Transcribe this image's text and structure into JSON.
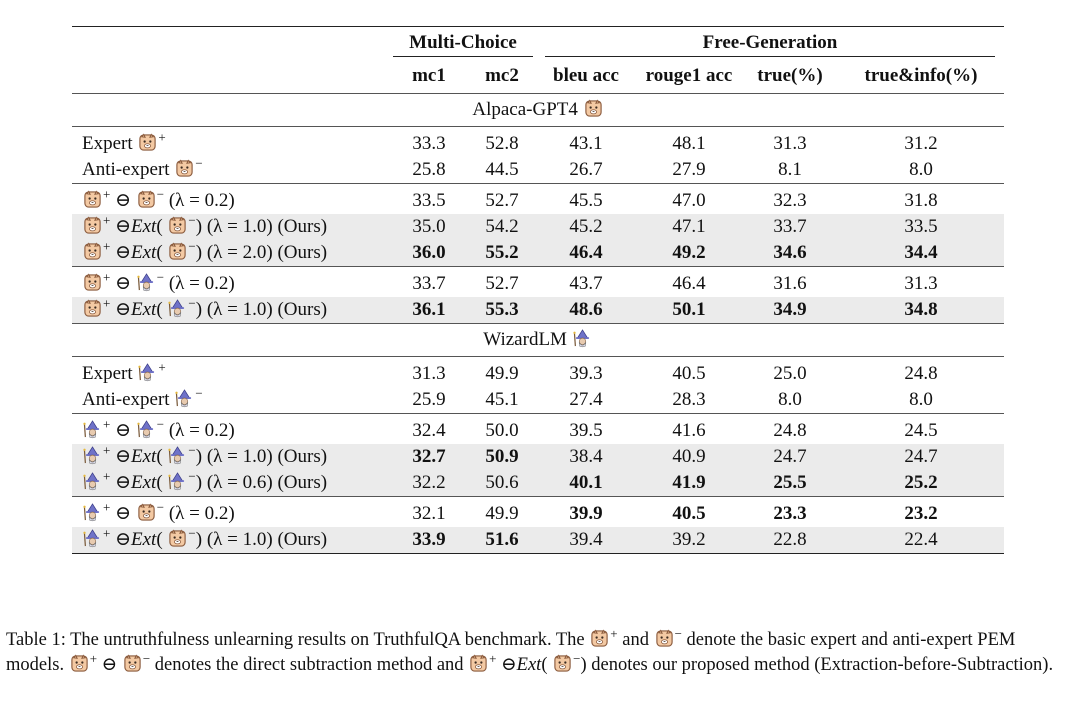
{
  "table": {
    "group_headers": [
      "Multi-Choice",
      "Free-Generation"
    ],
    "columns": [
      "mc1",
      "mc2",
      "bleu acc",
      "rouge1 acc",
      "true(%)",
      "true&info(%)"
    ],
    "sections": [
      {
        "title": "Alpaca-GPT4",
        "title_icon": "alpaca-icon",
        "groups": [
          {
            "rows": [
              {
                "label": "Expert",
                "icon": "alpaca-icon",
                "sign": "+",
                "kind": "single",
                "values": [
                  "33.3",
                  "52.8",
                  "43.1",
                  "48.1",
                  "31.3",
                  "31.2"
                ],
                "bold": [],
                "shaded": false
              },
              {
                "label": "Anti-expert",
                "icon": "alpaca-icon",
                "sign": "−",
                "kind": "single",
                "values": [
                  "25.8",
                  "44.5",
                  "26.7",
                  "27.9",
                  "8.1",
                  "8.0"
                ],
                "bold": [],
                "shaded": false
              }
            ]
          },
          {
            "rows": [
              {
                "left_icon": "alpaca-icon",
                "right_icon": "alpaca-icon",
                "kind": "sub",
                "lambda": "(λ = 0.2)",
                "values": [
                  "33.5",
                  "52.7",
                  "45.5",
                  "47.0",
                  "32.3",
                  "31.8"
                ],
                "bold": [],
                "shaded": false
              },
              {
                "left_icon": "alpaca-icon",
                "right_icon": "alpaca-icon",
                "kind": "ext",
                "lambda": "(λ = 1.0)",
                "ours": "(Ours)",
                "values": [
                  "35.0",
                  "54.2",
                  "45.2",
                  "47.1",
                  "33.7",
                  "33.5"
                ],
                "bold": [],
                "shaded": true
              },
              {
                "left_icon": "alpaca-icon",
                "right_icon": "alpaca-icon",
                "kind": "ext",
                "lambda": "(λ = 2.0)",
                "ours": "(Ours)",
                "values": [
                  "36.0",
                  "55.2",
                  "46.4",
                  "49.2",
                  "34.6",
                  "34.4"
                ],
                "bold": [
                  0,
                  1,
                  2,
                  3,
                  4,
                  5
                ],
                "shaded": true
              }
            ]
          },
          {
            "rows": [
              {
                "left_icon": "alpaca-icon",
                "right_icon": "wizard-icon",
                "kind": "sub",
                "lambda": "(λ = 0.2)",
                "values": [
                  "33.7",
                  "52.7",
                  "43.7",
                  "46.4",
                  "31.6",
                  "31.3"
                ],
                "bold": [],
                "shaded": false
              },
              {
                "left_icon": "alpaca-icon",
                "right_icon": "wizard-icon",
                "kind": "ext",
                "lambda": "(λ = 1.0)",
                "ours": "(Ours)",
                "values": [
                  "36.1",
                  "55.3",
                  "48.6",
                  "50.1",
                  "34.9",
                  "34.8"
                ],
                "bold": [
                  0,
                  1,
                  2,
                  3,
                  4,
                  5
                ],
                "shaded": true
              }
            ]
          }
        ]
      },
      {
        "title": "WizardLM",
        "title_icon": "wizard-icon",
        "groups": [
          {
            "rows": [
              {
                "label": "Expert",
                "icon": "wizard-icon",
                "sign": "+",
                "kind": "single",
                "values": [
                  "31.3",
                  "49.9",
                  "39.3",
                  "40.5",
                  "25.0",
                  "24.8"
                ],
                "bold": [],
                "shaded": false
              },
              {
                "label": "Anti-expert",
                "icon": "wizard-icon",
                "sign": "−",
                "kind": "single",
                "values": [
                  "25.9",
                  "45.1",
                  "27.4",
                  "28.3",
                  "8.0",
                  "8.0"
                ],
                "bold": [],
                "shaded": false
              }
            ]
          },
          {
            "rows": [
              {
                "left_icon": "wizard-icon",
                "right_icon": "wizard-icon",
                "kind": "sub",
                "lambda": "(λ = 0.2)",
                "values": [
                  "32.4",
                  "50.0",
                  "39.5",
                  "41.6",
                  "24.8",
                  "24.5"
                ],
                "bold": [],
                "shaded": false
              },
              {
                "left_icon": "wizard-icon",
                "right_icon": "wizard-icon",
                "kind": "ext",
                "lambda": "(λ = 1.0)",
                "ours": "(Ours)",
                "values": [
                  "32.7",
                  "50.9",
                  "38.4",
                  "40.9",
                  "24.7",
                  "24.7"
                ],
                "bold": [
                  0,
                  1
                ],
                "shaded": true
              },
              {
                "left_icon": "wizard-icon",
                "right_icon": "wizard-icon",
                "kind": "ext",
                "lambda": "(λ = 0.6)",
                "ours": "(Ours)",
                "values": [
                  "32.2",
                  "50.6",
                  "40.1",
                  "41.9",
                  "25.5",
                  "25.2"
                ],
                "bold": [
                  2,
                  3,
                  4,
                  5
                ],
                "shaded": true
              }
            ]
          },
          {
            "rows": [
              {
                "left_icon": "wizard-icon",
                "right_icon": "alpaca-icon",
                "kind": "sub",
                "lambda": "(λ = 0.2)",
                "values": [
                  "32.1",
                  "49.9",
                  "39.9",
                  "40.5",
                  "23.3",
                  "23.2"
                ],
                "bold": [
                  2,
                  3,
                  4,
                  5
                ],
                "shaded": false
              },
              {
                "left_icon": "wizard-icon",
                "right_icon": "alpaca-icon",
                "kind": "ext",
                "lambda": "(λ = 1.0)",
                "ours": "(Ours)",
                "values": [
                  "33.9",
                  "51.6",
                  "39.4",
                  "39.2",
                  "22.8",
                  "22.4"
                ],
                "bold": [
                  0,
                  1
                ],
                "shaded": true
              }
            ]
          }
        ]
      }
    ]
  },
  "symbols": {
    "ominus": "⊖",
    "ext": "Ext",
    "plus": "+",
    "minus": "−"
  },
  "caption": {
    "p1": "Table 1: The untruthfulness unlearning results on TruthfulQA benchmark. The ",
    "p2": " and ",
    "p3": " denote the basic expert and anti-expert PEM models. ",
    "p4": " denotes the direct subtraction method and ",
    "p5": " denotes our proposed method (Extraction-before-Subtraction)."
  },
  "colors": {
    "shade": "#ebebeb",
    "alpaca_fill": "#f3c9a3",
    "alpaca_outline": "#8a5a3c",
    "wizard_hat": "#6f72c8",
    "wizard_face": "#e8cbb0"
  }
}
